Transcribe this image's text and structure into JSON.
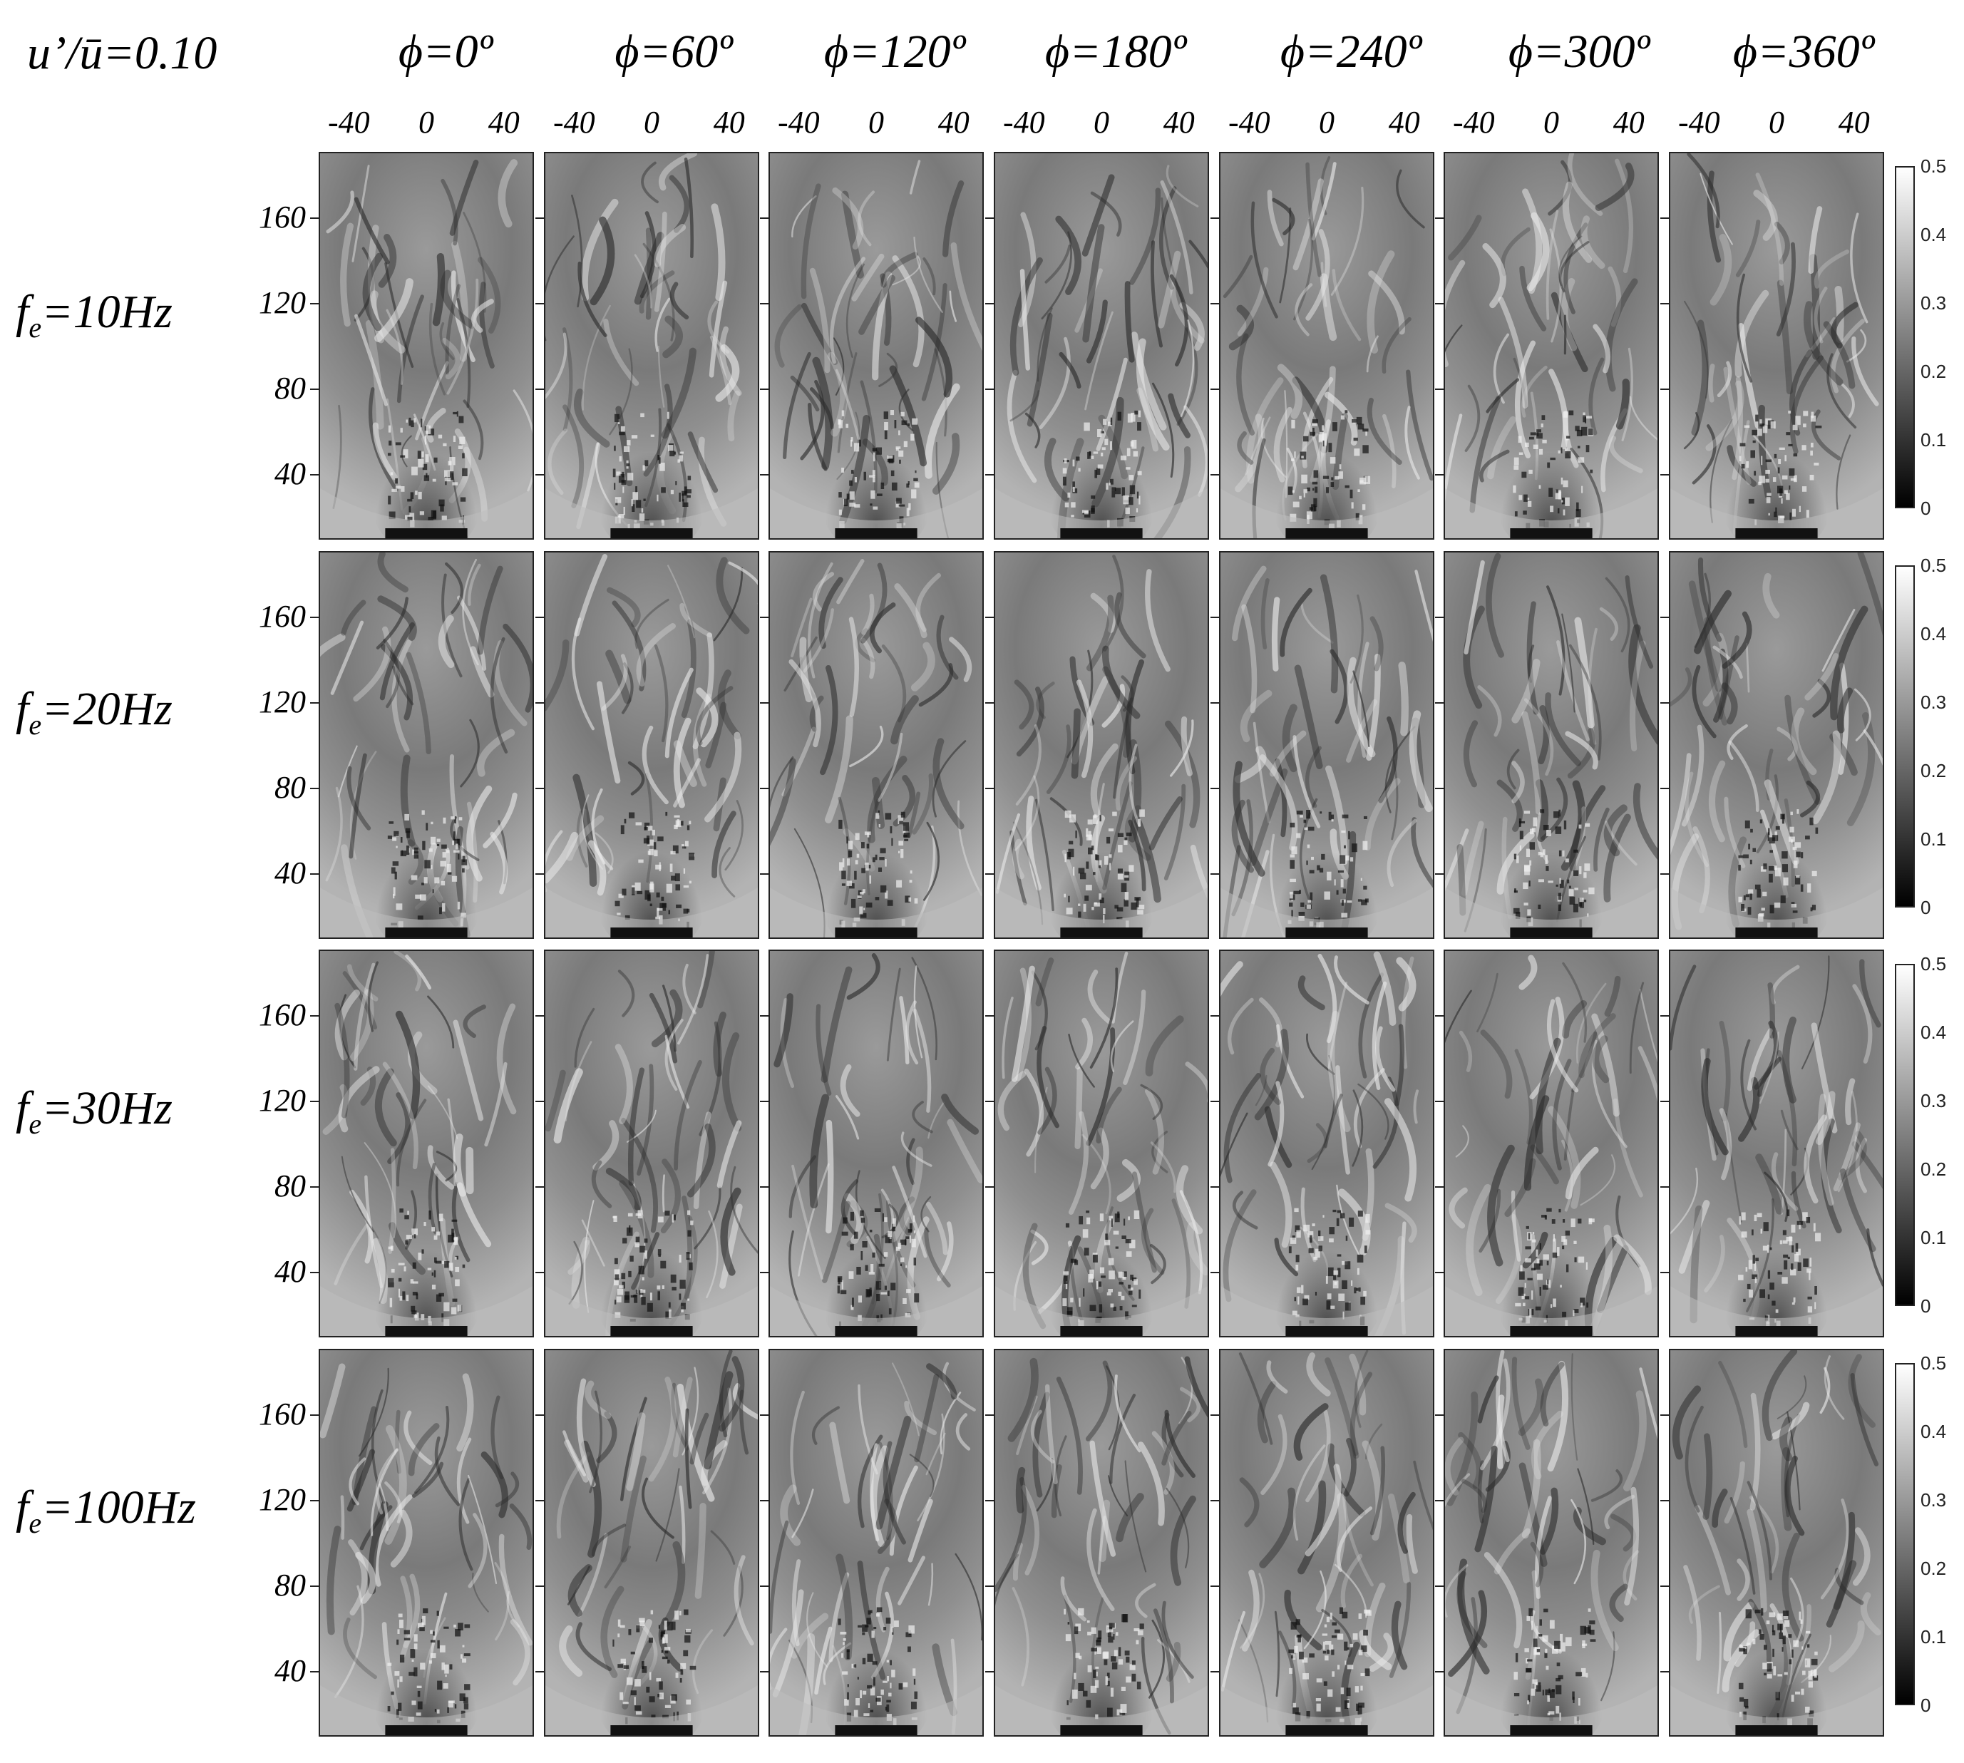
{
  "figure": {
    "title": "u’/ū=0.10",
    "phase_headers": [
      "ϕ=0º",
      "ϕ=60º",
      "ϕ=120º",
      "ϕ=180º",
      "ϕ=240º",
      "ϕ=300º",
      "ϕ=360º"
    ],
    "x_ticks": [
      "-40",
      "0",
      "40"
    ],
    "y_ticks": [
      "160",
      "120",
      "80",
      "40"
    ],
    "colorbar_ticks": [
      "0.5",
      "0.4",
      "0.3",
      "0.2",
      "0.1",
      "0"
    ],
    "rows": [
      {
        "f": "f",
        "sub": "e",
        "rest": "=10Hz"
      },
      {
        "f": "f",
        "sub": "e",
        "rest": "=20Hz"
      },
      {
        "f": "f",
        "sub": "e",
        "rest": "=30Hz"
      },
      {
        "f": "f",
        "sub": "e",
        "rest": "=100Hz"
      }
    ],
    "colormap": "grayscale",
    "colors": {
      "ink": "#000000",
      "frame": "#222222"
    }
  }
}
